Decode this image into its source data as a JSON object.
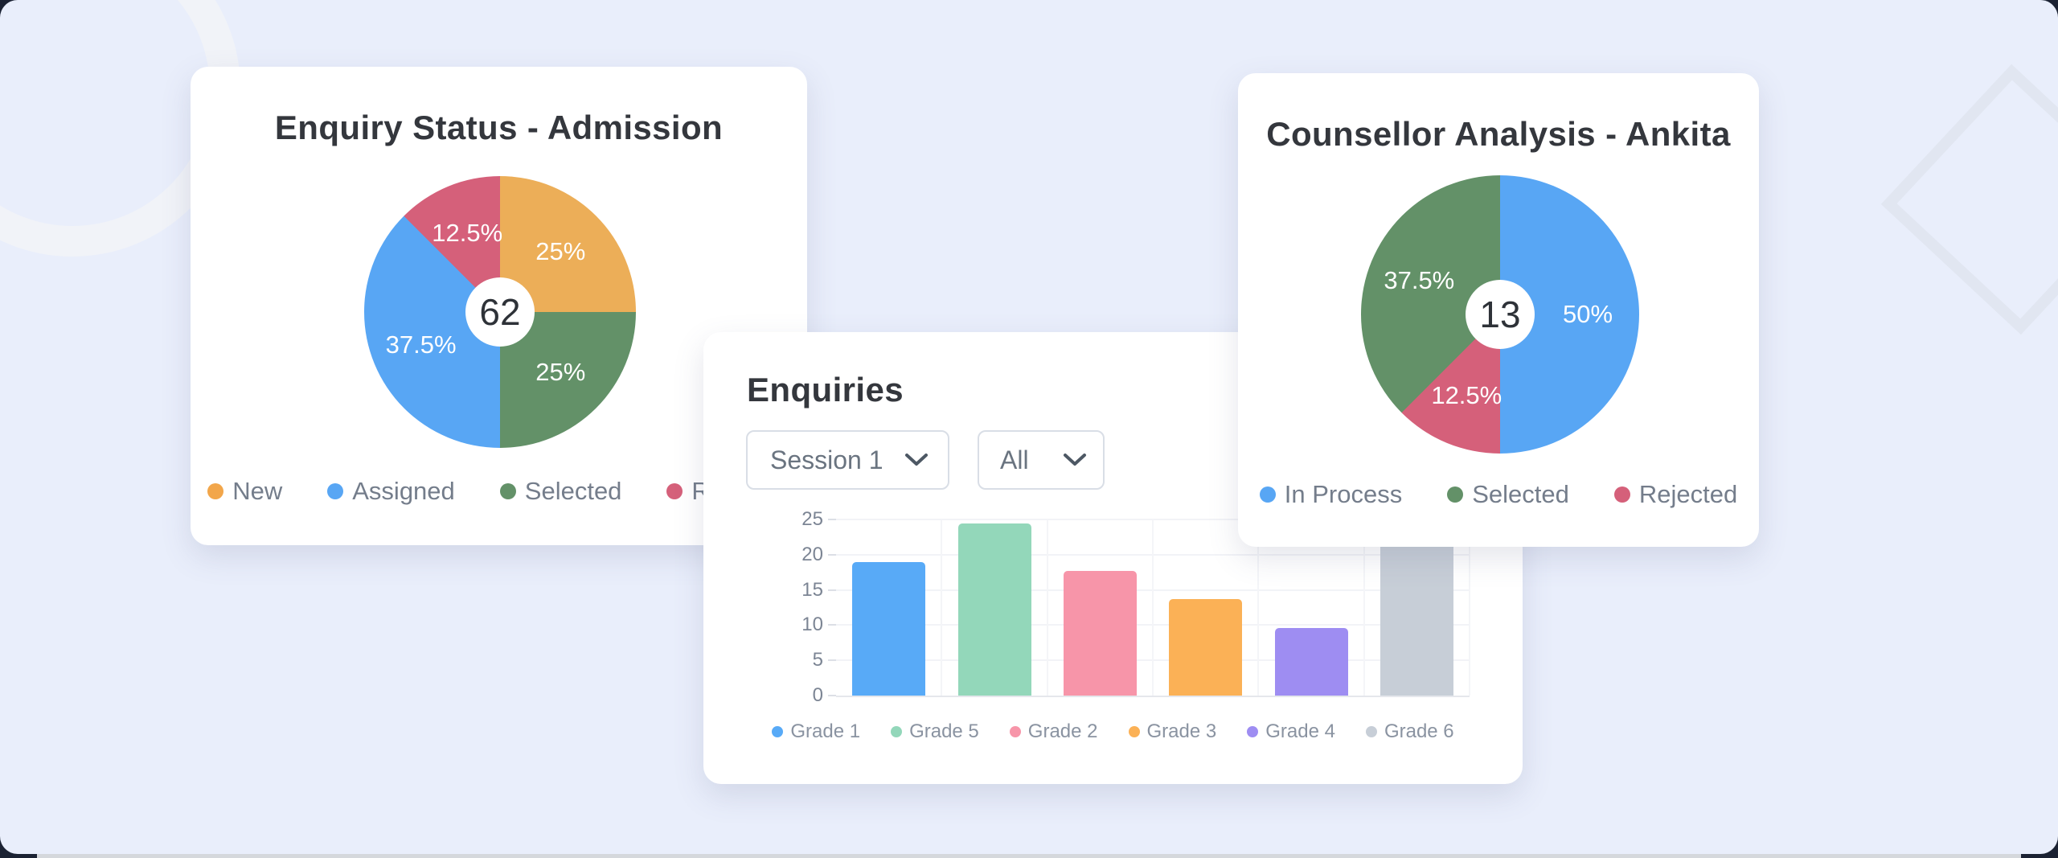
{
  "ui": {
    "filters": {
      "session": "Session 1",
      "grade": "All"
    },
    "icons": {
      "dropdown": "chevron-down"
    },
    "background": {
      "panel_color": "#e9eefb",
      "bottom_strip_color": "#d5d8dc",
      "corner_color": "#1b2233",
      "decorations": [
        "circle-outline-top-left",
        "diamond-outline-right"
      ]
    }
  },
  "chart_data": [
    {
      "type": "pie",
      "variant": "donut",
      "title": "Enquiry Status - Admission",
      "center_label": "62",
      "start_angle_deg": 0,
      "direction": "clockwise",
      "segments": [
        {
          "label": "New",
          "value": 25,
          "display": "25%",
          "color": "#ecae58"
        },
        {
          "label": "Selected",
          "value": 25,
          "display": "25%",
          "color": "#639168"
        },
        {
          "label": "Assigned",
          "value": 37.5,
          "display": "37.5%",
          "color": "#58a6f4"
        },
        {
          "label": "Rejected",
          "value": 12.5,
          "display": "12.5%",
          "color": "#d5607a"
        }
      ],
      "legend": [
        {
          "label": "New",
          "color": "#f2a64a"
        },
        {
          "label": "Assigned",
          "color": "#58a6f4"
        },
        {
          "label": "Selected",
          "color": "#639168"
        },
        {
          "label": "Rejected",
          "color": "#d5607a"
        }
      ],
      "legend_position": "bottom",
      "note": "Rejected legend text partially hidden behind overlapping Enquiries card"
    },
    {
      "type": "bar",
      "title": "Enquiries",
      "categories": [
        "Grade 1",
        "Grade 5",
        "Grade 2",
        "Grade 3",
        "Grade 4",
        "Grade 6"
      ],
      "values": [
        19,
        24.4,
        17.7,
        13.7,
        9.6,
        22
      ],
      "colors": [
        "#58aaf7",
        "#93d7ba",
        "#f795a9",
        "#fbb156",
        "#9e8df2",
        "#c7ced7"
      ],
      "ylim": [
        0,
        25
      ],
      "yticks": [
        0,
        5,
        10,
        15,
        20,
        25
      ],
      "grid": true,
      "legend_position": "bottom",
      "legend": [
        {
          "label": "Grade 1",
          "color": "#58aaf7"
        },
        {
          "label": "Grade 5",
          "color": "#93d7ba"
        },
        {
          "label": "Grade 2",
          "color": "#f795a9"
        },
        {
          "label": "Grade 3",
          "color": "#fbb156"
        },
        {
          "label": "Grade 4",
          "color": "#9e8df2"
        },
        {
          "label": "Grade 6",
          "color": "#c7ced7"
        }
      ],
      "occlusion_note": "Top of Grade 6 bar hidden behind overlapping Counsellor card; value estimated"
    },
    {
      "type": "pie",
      "variant": "donut",
      "title": "Counsellor Analysis - Ankita",
      "center_label": "13",
      "start_angle_deg": 0,
      "direction": "clockwise",
      "segments": [
        {
          "label": "In Process",
          "value": 50,
          "display": "50%",
          "color": "#58a6f4"
        },
        {
          "label": "Rejected",
          "value": 12.5,
          "display": "12.5%",
          "color": "#d5607a"
        },
        {
          "label": "Selected",
          "value": 37.5,
          "display": "37.5%",
          "color": "#639168"
        }
      ],
      "legend": [
        {
          "label": "In Process",
          "color": "#58a6f4"
        },
        {
          "label": "Selected",
          "color": "#639168"
        },
        {
          "label": "Rejected",
          "color": "#d5607a"
        }
      ],
      "legend_position": "bottom"
    }
  ]
}
